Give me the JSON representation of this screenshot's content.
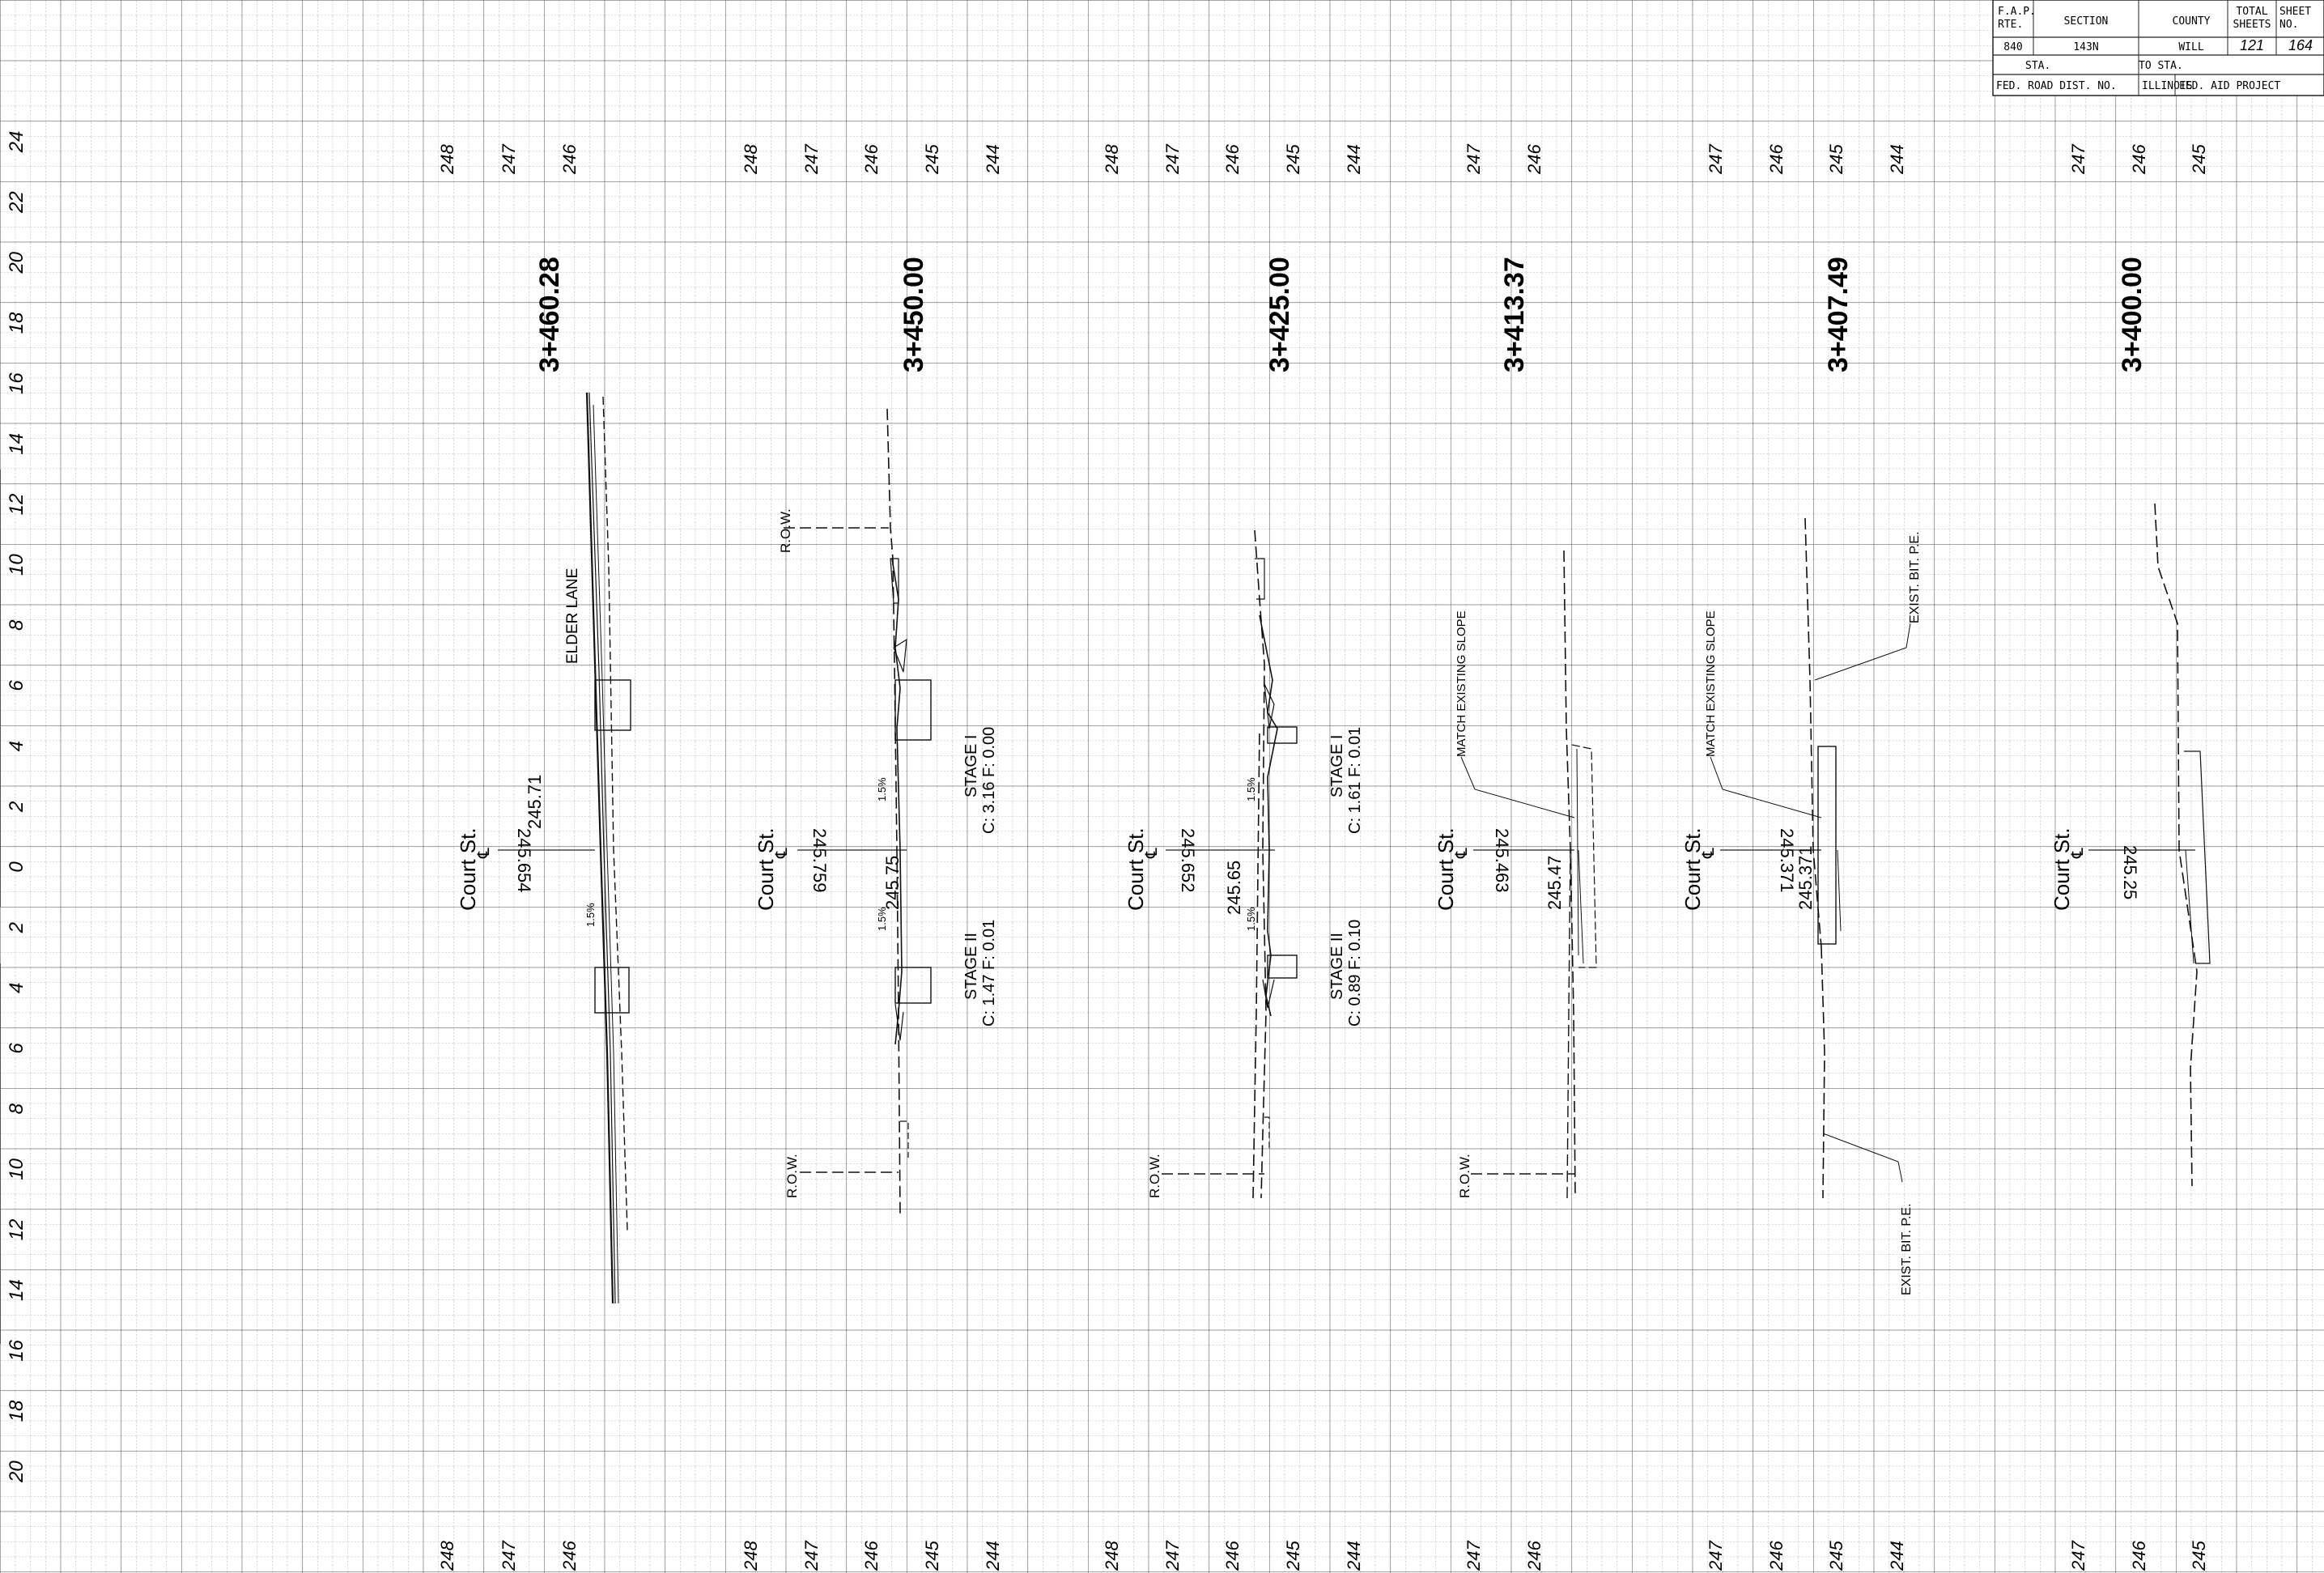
{
  "title_block": {
    "row1": [
      "F.A.P.",
      "RTE.",
      "SECTION",
      "COUNTY",
      "TOTAL",
      "SHEETS",
      "SHEET",
      "NO."
    ],
    "row2": [
      "840",
      "143N",
      "WILL",
      "121",
      "164"
    ],
    "row3": [
      "STA.",
      "TO STA."
    ],
    "row4": [
      "FED. ROAD DIST. NO.",
      "ILLINOIS",
      "FED. AID PROJECT"
    ]
  },
  "left_offsets": [
    "24",
    "22",
    "20",
    "18",
    "16",
    "14",
    "12",
    "10",
    "8",
    "6",
    "4",
    "2",
    "0",
    "2",
    "4",
    "6",
    "8",
    "10",
    "12",
    "14",
    "16",
    "18",
    "20"
  ],
  "sections": [
    {
      "station": "3+460.28",
      "elev_labels": [
        "248",
        "247",
        "246"
      ],
      "centerline_label": "Court St.",
      "elev_left": "245.654",
      "elev_right": "245.71",
      "notes": [
        "ELDER LANE"
      ],
      "slopes": [
        "1.5%"
      ]
    },
    {
      "station": "3+450.00",
      "elev_labels": [
        "248",
        "247",
        "246",
        "245",
        "244"
      ],
      "centerline_label": "Court St.",
      "elev_left": "245.759",
      "elev_right": "245.75",
      "notes": [
        "R.O.W.",
        "R.O.W.",
        "STAGE I",
        "C: 3.16 F: 0.00",
        "STAGE II",
        "C: 1.47 F: 0.01"
      ],
      "slopes": [
        "1.5%",
        "1.5%"
      ]
    },
    {
      "station": "3+425.00",
      "elev_labels": [
        "248",
        "247",
        "246",
        "245",
        "244"
      ],
      "centerline_label": "Court St.",
      "elev_left": "245.652",
      "elev_right": "245.65",
      "notes": [
        "R.O.W.",
        "STAGE I",
        "C: 1.61 F: 0.01",
        "STAGE II",
        "C: 0.89 F: 0.10"
      ],
      "slopes": [
        "1.5%",
        "1.5%"
      ]
    },
    {
      "station": "3+413.37",
      "elev_labels": [
        "247",
        "246"
      ],
      "centerline_label": "Court St.",
      "elev_left": "245.463",
      "elev_right": "245.47",
      "notes": [
        "MATCH EXISTING SLOPE",
        "R.O.W."
      ],
      "slopes": []
    },
    {
      "station": "3+407.49",
      "elev_labels": [
        "247",
        "246",
        "245",
        "244"
      ],
      "centerline_label": "Court St.",
      "elev_left": "245.371",
      "elev_right": "245.371",
      "notes": [
        "MATCH EXISTING SLOPE",
        "EXIST. BIT. P.E.",
        "EXIST. BIT. P.E."
      ],
      "slopes": []
    },
    {
      "station": "3+400.00",
      "elev_labels": [
        "247",
        "246",
        "245"
      ],
      "centerline_label": "Court St.",
      "elev_left": "245.25",
      "elev_right": "",
      "notes": [],
      "slopes": []
    }
  ]
}
